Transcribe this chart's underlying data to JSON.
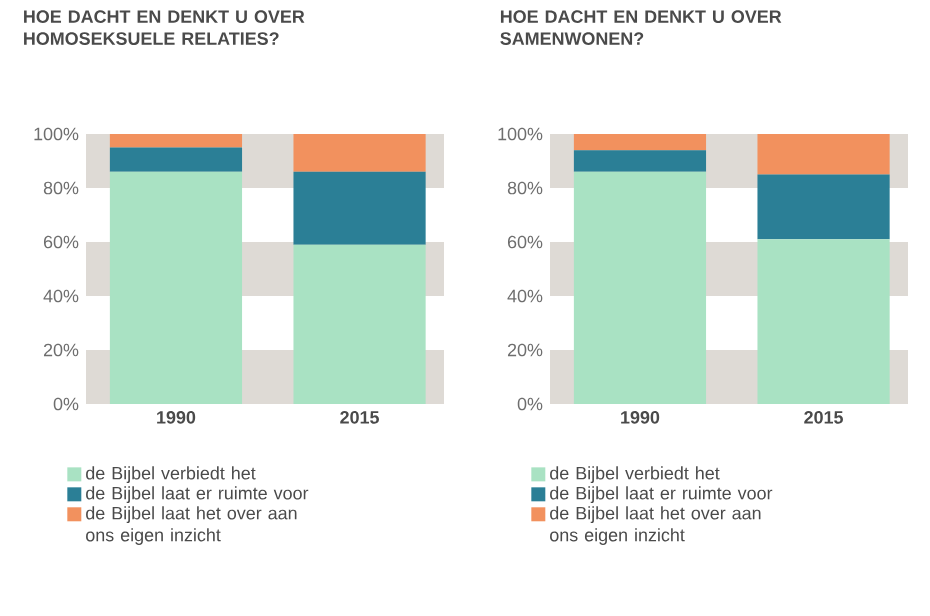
{
  "chart_data": [
    {
      "type": "bar",
      "title": "HOE DACHT EN DENKT U OVER HOMOSEKSUELE RELATIES?",
      "categories": [
        "1990",
        "2015"
      ],
      "stacked": true,
      "legend": "bottom",
      "series": [
        {
          "name": "de Bijbel verbiedt het",
          "color": "#a9e2c3",
          "values": [
            86,
            59
          ]
        },
        {
          "name": "de Bijbel laat er ruimte voor",
          "color": "#2b7f96",
          "values": [
            9,
            27
          ]
        },
        {
          "name": "de Bijbel laat het over aan ons eigen inzicht",
          "color": "#f2915e",
          "values": [
            5,
            14
          ]
        }
      ],
      "ylim": [
        0,
        100
      ],
      "yticks": [
        {
          "value": 0,
          "label": "0%"
        },
        {
          "value": 20,
          "label": "20%"
        },
        {
          "value": 40,
          "label": "40%"
        },
        {
          "value": 60,
          "label": "60%"
        },
        {
          "value": 80,
          "label": "80%"
        },
        {
          "value": 100,
          "label": "100%"
        }
      ],
      "bands": [
        {
          "axis": "y",
          "from": 0,
          "to": 20,
          "color": "#dedad5"
        },
        {
          "axis": "y",
          "from": 40,
          "to": 60,
          "color": "#dedad5"
        },
        {
          "axis": "y",
          "from": 80,
          "to": 100,
          "color": "#dedad5"
        }
      ]
    },
    {
      "type": "bar",
      "title": "HOE DACHT EN DENKT U OVER SAMENWONEN?",
      "categories": [
        "1990",
        "2015"
      ],
      "stacked": true,
      "legend": "bottom",
      "series": [
        {
          "name": "de Bijbel verbiedt het",
          "color": "#a9e2c3",
          "values": [
            86,
            61
          ]
        },
        {
          "name": "de Bijbel laat er ruimte voor",
          "color": "#2b7f96",
          "values": [
            8,
            24
          ]
        },
        {
          "name": "de Bijbel laat het over aan ons eigen inzicht",
          "color": "#f2915e",
          "values": [
            6,
            15
          ]
        }
      ],
      "ylim": [
        0,
        100
      ],
      "yticks": [
        {
          "value": 0,
          "label": "0%"
        },
        {
          "value": 20,
          "label": "20%"
        },
        {
          "value": 40,
          "label": "40%"
        },
        {
          "value": 60,
          "label": "60%"
        },
        {
          "value": 80,
          "label": "80%"
        },
        {
          "value": 100,
          "label": "100%"
        }
      ],
      "bands": [
        {
          "axis": "y",
          "from": 0,
          "to": 20,
          "color": "#dedad5"
        },
        {
          "axis": "y",
          "from": 40,
          "to": 60,
          "color": "#dedad5"
        },
        {
          "axis": "y",
          "from": 80,
          "to": 100,
          "color": "#dedad5"
        }
      ]
    }
  ]
}
